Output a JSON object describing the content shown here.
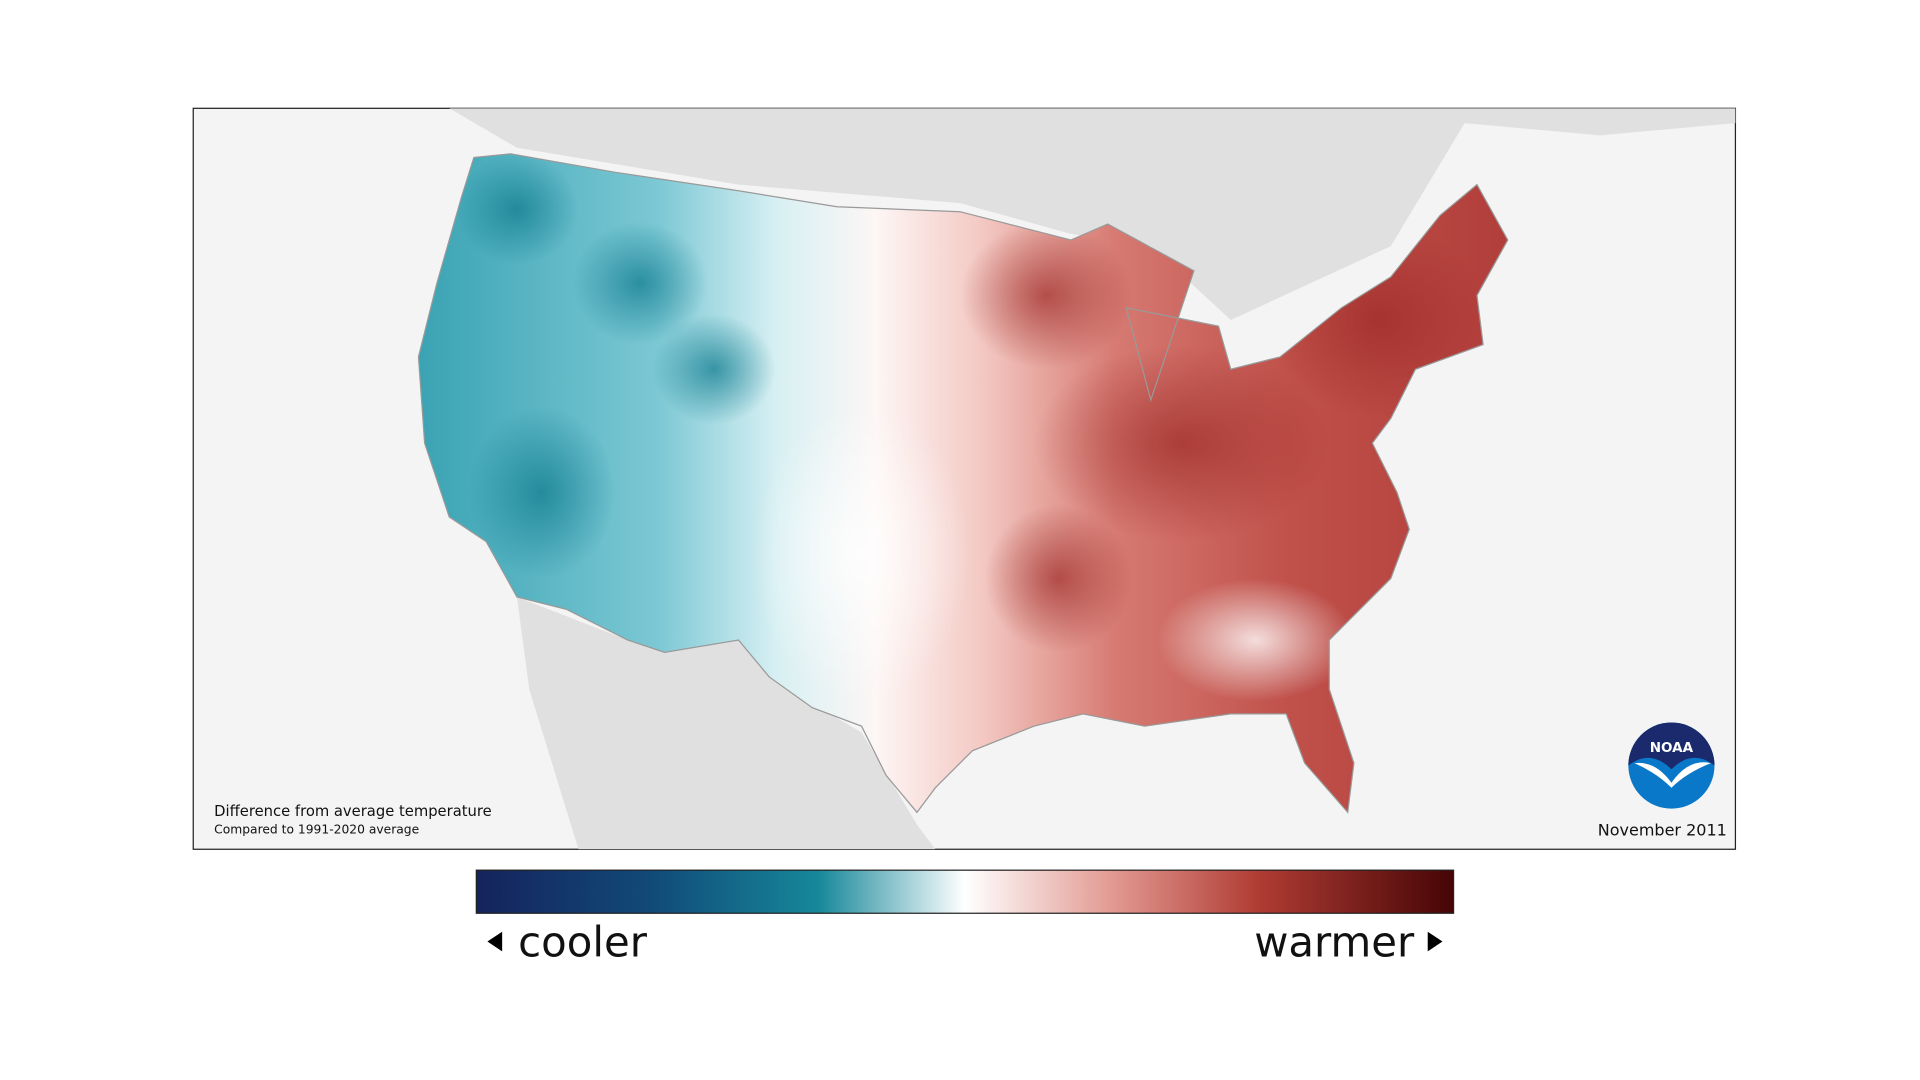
{
  "map": {
    "caption": "Difference from average temperature",
    "subcaption": "Compared to 1991-2020 average",
    "date": "November 2011",
    "logo": "NOAA"
  },
  "legend": {
    "low_label": "cooler",
    "high_label": "warmer"
  }
}
